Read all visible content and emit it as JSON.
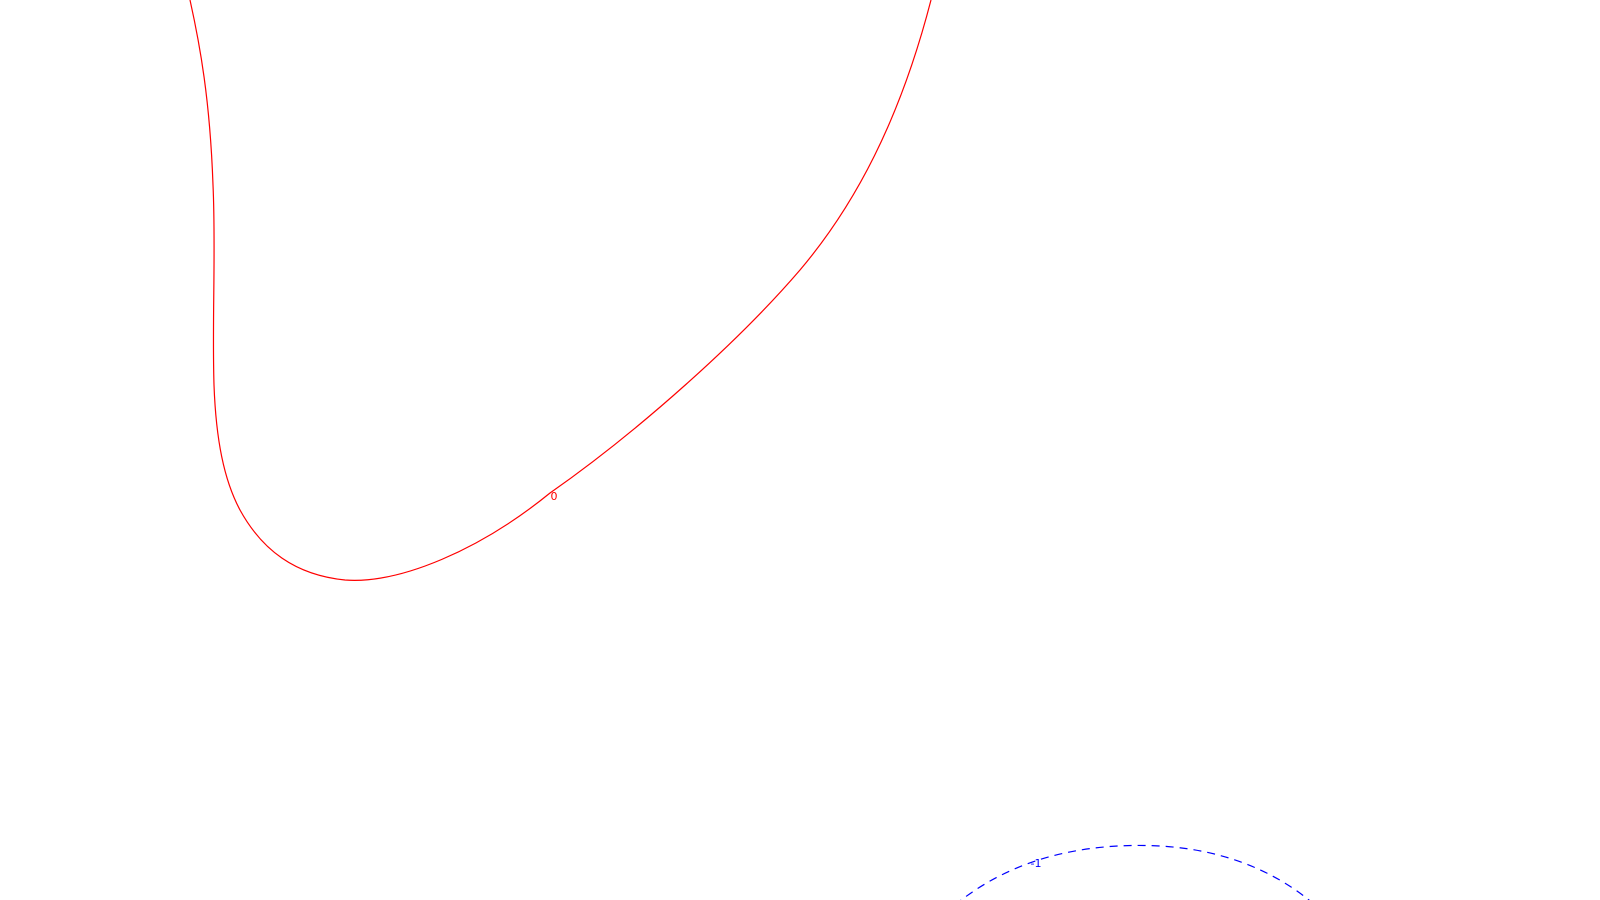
{
  "chart_data": {
    "type": "contour",
    "title": "",
    "xlabel": "",
    "ylabel": "",
    "grid": false,
    "legend": "none",
    "contours": [
      {
        "level_label": "0",
        "color": "#ff0000",
        "line_style": "solid"
      },
      {
        "level_label": "-1",
        "color": "#0000ff",
        "line_style": "dashed"
      }
    ]
  }
}
